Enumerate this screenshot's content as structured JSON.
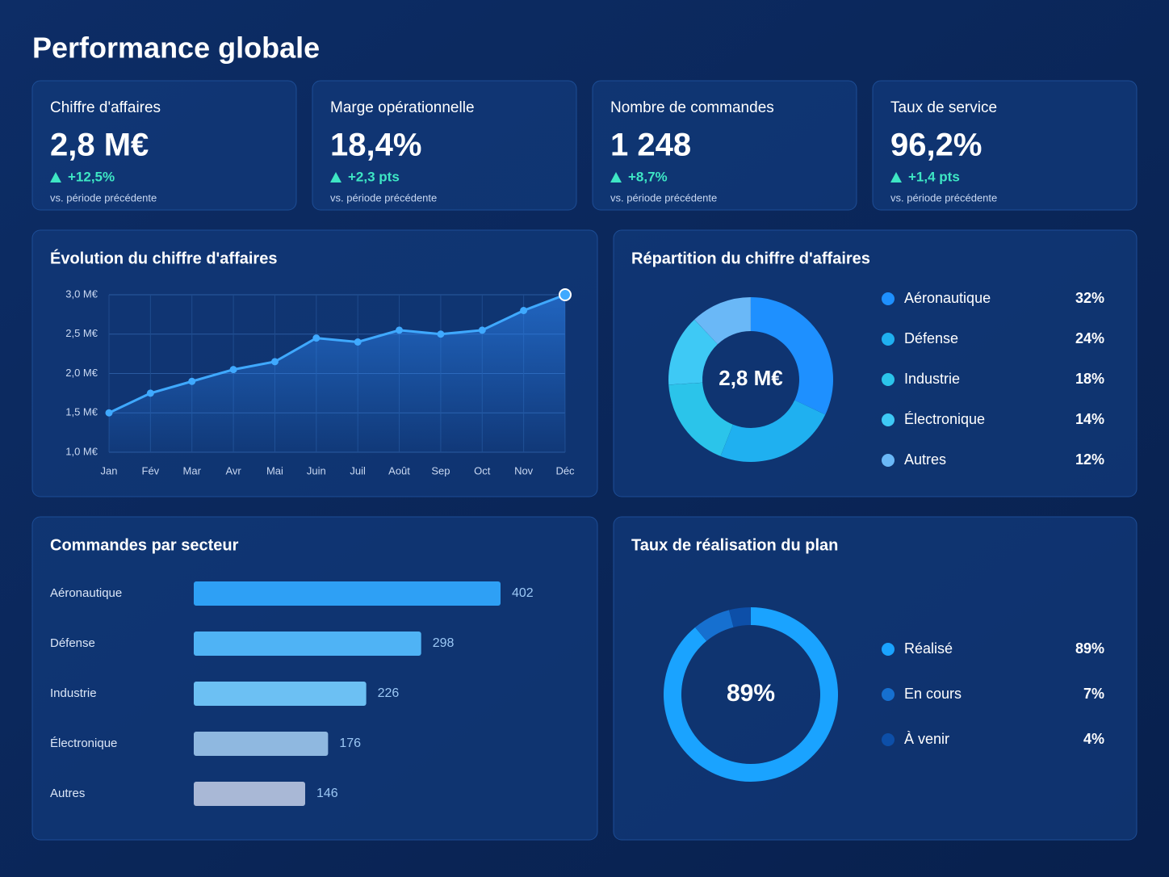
{
  "title": "Performance globale",
  "kpis": [
    {
      "label": "Chiffre d'affaires",
      "value": "2,8 M€",
      "delta": "+12,5%",
      "note": "vs. période précédente"
    },
    {
      "label": "Marge opérationnelle",
      "value": "18,4%",
      "delta": "+2,3 pts",
      "note": "vs. période précédente"
    },
    {
      "label": "Nombre de commandes",
      "value": "1 248",
      "delta": "+8,7%",
      "note": "vs. période précédente"
    },
    {
      "label": "Taux de service",
      "value": "96,2%",
      "delta": "+1,4 pts",
      "note": "vs. période précédente"
    }
  ],
  "chart_data": [
    {
      "type": "line",
      "title": "Évolution du chiffre d'affaires",
      "categories": [
        "Jan",
        "Fév",
        "Mar",
        "Avr",
        "Mai",
        "Juin",
        "Juil",
        "Août",
        "Sep",
        "Oct",
        "Nov",
        "Déc"
      ],
      "values": [
        1.5,
        1.75,
        1.9,
        2.05,
        2.15,
        2.45,
        2.4,
        2.55,
        2.5,
        2.55,
        2.8,
        3.0
      ],
      "color": "#3fa9ff",
      "grid": true,
      "ylim": [
        1.0,
        3.0
      ],
      "yticks": [
        {
          "value": 1.0,
          "label": "1,0 M€"
        },
        {
          "value": 1.5,
          "label": "1,5 M€"
        },
        {
          "value": 2.0,
          "label": "2,0 M€"
        },
        {
          "value": 2.5,
          "label": "2,5 M€"
        },
        {
          "value": 3.0,
          "label": "3,0 M€"
        }
      ]
    },
    {
      "type": "donut",
      "title": "Répartition du chiffre d'affaires",
      "center_label": "2,8 M€",
      "categories": [
        "Aéronautique",
        "Défense",
        "Industrie",
        "Électronique",
        "Autres"
      ],
      "values": [
        32,
        24,
        18,
        14,
        12
      ],
      "value_labels": [
        "32%",
        "24%",
        "18%",
        "14%",
        "12%"
      ],
      "colors": [
        "#1e90ff",
        "#1fb0f0",
        "#2bc4ea",
        "#3ec9f5",
        "#6ab8f7"
      ]
    },
    {
      "type": "hbar",
      "title": "Commandes par secteur",
      "categories": [
        "Aéronautique",
        "Défense",
        "Industrie",
        "Électronique",
        "Autres"
      ],
      "values": [
        402,
        298,
        226,
        176,
        146
      ],
      "colors": [
        "#2ea0f5",
        "#4fb3f5",
        "#6cc0f3",
        "#8fb8e0",
        "#a9b8d6"
      ]
    },
    {
      "type": "donut",
      "title": "Taux de réalisation du plan",
      "center_label": "89%",
      "categories": [
        "Réalisé",
        "En cours",
        "À venir"
      ],
      "values": [
        89,
        7,
        4
      ],
      "value_labels": [
        "89%",
        "7%",
        "4%"
      ],
      "colors": [
        "#1aa3ff",
        "#1670d0",
        "#0d4fa8"
      ]
    }
  ]
}
